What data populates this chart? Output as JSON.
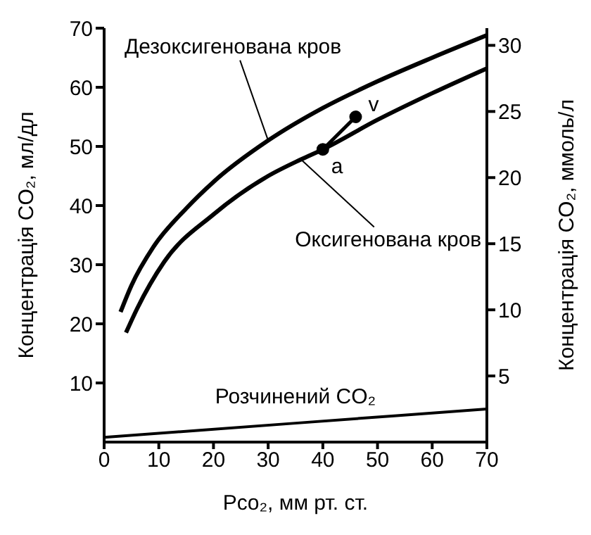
{
  "chart_data": {
    "type": "line",
    "xlabel": "Pco₂, мм рт. ст.",
    "ylabel": "Концентрація CO₂, мл/дл",
    "y2label": "Концентрація CO₂, ммоль/л",
    "xlim": [
      0,
      70
    ],
    "xticks": [
      0,
      10,
      20,
      30,
      40,
      50,
      60,
      70
    ],
    "ylim": [
      0,
      70
    ],
    "yticks": [
      10,
      20,
      30,
      40,
      50,
      60,
      70
    ],
    "y2lim": [
      0,
      31.3
    ],
    "y2ticks": [
      5,
      10,
      15,
      20,
      25,
      30
    ],
    "marker": "none",
    "line_style": "solid",
    "series": [
      {
        "name": "Дезоксигенована кров",
        "color": "#000000",
        "x": [
          3,
          5,
          9,
          15,
          20,
          30,
          40,
          50,
          60,
          70
        ],
        "values": [
          22,
          26.5,
          33,
          39.5,
          44,
          51,
          56.5,
          61,
          65,
          68.8
        ]
      },
      {
        "name": "Оксигенована кров",
        "color": "#000000",
        "x": [
          4,
          6,
          11,
          20,
          30,
          36,
          40,
          50,
          60,
          70
        ],
        "values": [
          18.5,
          22.5,
          30.5,
          38.5,
          45,
          47.8,
          49.5,
          54.5,
          59,
          63.2
        ]
      },
      {
        "name": "Розчинений CO₂",
        "color": "#000000",
        "x": [
          0,
          35,
          70
        ],
        "values": [
          0.8,
          3.2,
          5.6
        ]
      },
      {
        "color": "#000000",
        "marker": "circle",
        "x": [
          40,
          46
        ],
        "values": [
          49.5,
          55
        ]
      }
    ],
    "annotations": [
      {
        "text": "a",
        "x": 40,
        "y": 49.5
      },
      {
        "text": "v",
        "x": 46,
        "y": 55
      }
    ]
  }
}
